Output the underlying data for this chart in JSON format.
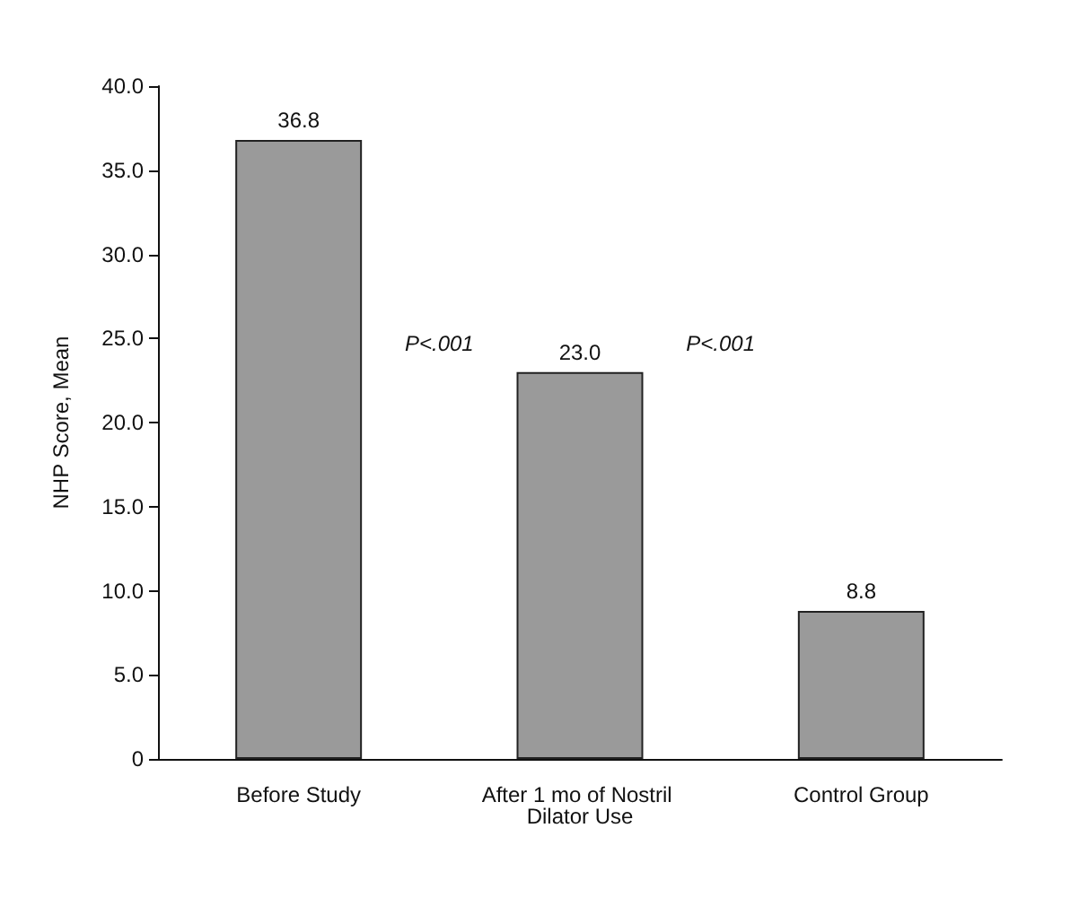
{
  "chart_data": {
    "type": "bar",
    "ylabel": "NHP Score, Mean",
    "categories": [
      "Before Study",
      "After 1 mo of Nostril Dilator Use",
      "Control Group"
    ],
    "values": [
      36.8,
      23.0,
      8.8
    ],
    "color": "#9a9a9a",
    "data_labels": true,
    "value_labels": [
      "36.8",
      "23.0",
      "8.8"
    ],
    "ylim": [
      0,
      40
    ],
    "yticks": [
      0,
      {
        "value": 5,
        "label": "5.0"
      },
      {
        "value": 10,
        "label": "10.0"
      },
      {
        "value": 15,
        "label": "15.0"
      },
      {
        "value": 20,
        "label": "20.0"
      },
      {
        "value": 25,
        "label": "25.0"
      },
      {
        "value": 30,
        "label": "30.0"
      },
      {
        "value": 35,
        "label": "35.0"
      },
      {
        "value": 40,
        "label": "40.0"
      }
    ],
    "grid": false,
    "annotations": [
      "P<.001",
      "P<.001"
    ]
  }
}
